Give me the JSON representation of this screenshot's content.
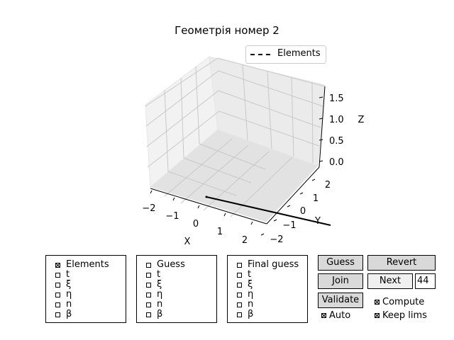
{
  "chart": {
    "title": "Геометрія номер 2",
    "legend": [
      "Elements"
    ],
    "xlabel": "X",
    "ylabel": "Y",
    "zlabel": "Z",
    "xticks": [
      "−2",
      "−1",
      "0",
      "1",
      "2"
    ],
    "yticks": [
      "−2",
      "−1",
      "0",
      "1",
      "2"
    ],
    "zticks": [
      "0.0",
      "0.5",
      "1.0",
      "1.5"
    ]
  },
  "chart_data": {
    "type": "line",
    "title": "Геометрія номер 2",
    "xlabel": "X",
    "ylabel": "Y",
    "zlabel": "Z",
    "xlim": [
      -2.5,
      2.5
    ],
    "ylim": [
      -2.5,
      2.5
    ],
    "zlim": [
      0,
      1.75
    ],
    "grid": true,
    "legend_position": "top-right",
    "series": [
      {
        "name": "Elements",
        "style": "dash-dot",
        "color": "#000000",
        "points": [
          [
            -0.3,
            0.1,
            0.0
          ],
          [
            2.0,
            0.1,
            0.0
          ]
        ]
      }
    ]
  },
  "panels": [
    {
      "items": [
        {
          "label": "Elements",
          "checked": true
        },
        {
          "label": "t",
          "checked": false
        },
        {
          "label": "ξ",
          "checked": false
        },
        {
          "label": "η",
          "checked": false
        },
        {
          "label": "n",
          "checked": false
        },
        {
          "label": "β",
          "checked": false
        }
      ]
    },
    {
      "items": [
        {
          "label": "Guess",
          "checked": false
        },
        {
          "label": "t",
          "checked": false
        },
        {
          "label": "ξ",
          "checked": false
        },
        {
          "label": "η",
          "checked": false
        },
        {
          "label": "n",
          "checked": false
        },
        {
          "label": "β",
          "checked": false
        }
      ]
    },
    {
      "items": [
        {
          "label": "Final guess",
          "checked": false
        },
        {
          "label": "t",
          "checked": false
        },
        {
          "label": "ξ",
          "checked": false
        },
        {
          "label": "η",
          "checked": false
        },
        {
          "label": "n",
          "checked": false
        },
        {
          "label": "β",
          "checked": false
        }
      ]
    }
  ],
  "controls": {
    "guess": "Guess",
    "revert": "Revert",
    "join": "Join",
    "next": "Next",
    "next_value": "44",
    "validate": "Validate",
    "compute": "Compute",
    "auto": "Auto",
    "keep_lims": "Keep lims",
    "compute_checked": true,
    "auto_checked": true,
    "keep_lims_checked": true
  }
}
